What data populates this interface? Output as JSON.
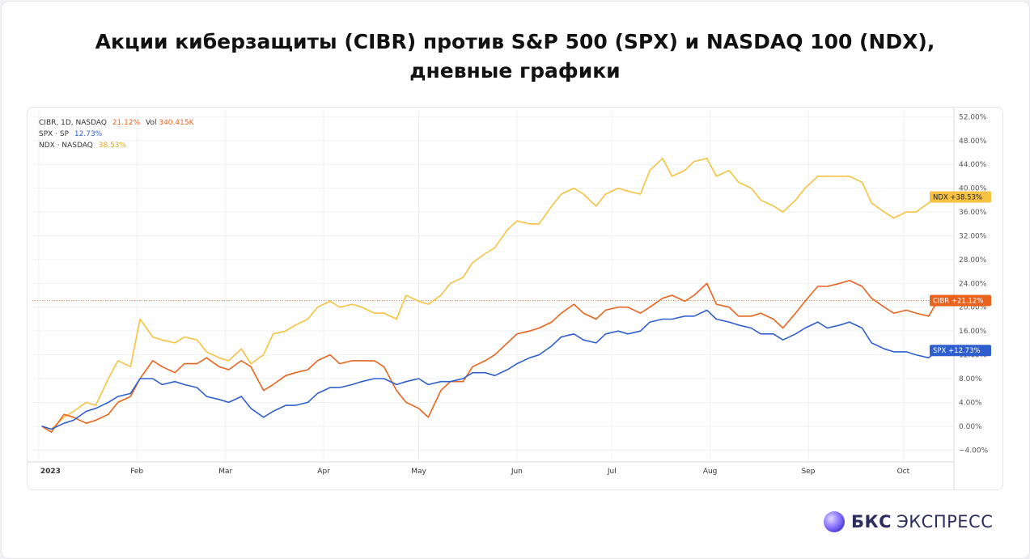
{
  "page": {
    "title_line1": "Акции киберзащиты (CIBR) против S&P 500 (SPX) и NASDAQ 100 (NDX),",
    "title_line2": "дневные графики"
  },
  "legend": {
    "cibr_label": "CIBR, 1D, NASDAQ",
    "cibr_value": "21.12%",
    "vol_label": "Vol",
    "vol_value": "340.415K",
    "spx_label": "SPX · SP",
    "spx_value": "12.73%",
    "ndx_label": "NDX · NASDAQ",
    "ndx_value": "38.53%"
  },
  "brand": {
    "name_bold": "БКС",
    "name_rest": "ЭКСПРЕСС"
  },
  "chart_data": {
    "type": "line",
    "y_unit": "%",
    "ylim": [
      -6,
      53
    ],
    "y_ticks": [
      "52.00%",
      "48.00%",
      "44.00%",
      "40.00%",
      "36.00%",
      "32.00%",
      "28.00%",
      "24.00%",
      "20.00%",
      "16.00%",
      "12.00%",
      "8.00%",
      "4.00%",
      "0.00%",
      "−4.00%"
    ],
    "y_tick_values": [
      52,
      48,
      44,
      40,
      36,
      32,
      28,
      24,
      20,
      16,
      12,
      8,
      4,
      0,
      -4
    ],
    "x_range": [
      "2022-12-30",
      "2023-10-17"
    ],
    "x_ticks": [
      {
        "label": "2023",
        "date": "2023-01-01"
      },
      {
        "label": "Feb",
        "date": "2023-02-01"
      },
      {
        "label": "Mar",
        "date": "2023-03-01"
      },
      {
        "label": "Apr",
        "date": "2023-04-01"
      },
      {
        "label": "May",
        "date": "2023-05-01"
      },
      {
        "label": "Jun",
        "date": "2023-06-01"
      },
      {
        "label": "Jul",
        "date": "2023-07-01"
      },
      {
        "label": "Aug",
        "date": "2023-08-01"
      },
      {
        "label": "Sep",
        "date": "2023-09-01"
      },
      {
        "label": "Oct",
        "date": "2023-10-01"
      }
    ],
    "grid": true,
    "legend_position": "top-left",
    "series": [
      {
        "name": "NDX",
        "color": "#f5c242",
        "last_label": "NDX  +38.53%",
        "points": [
          [
            "2023-01-02",
            0
          ],
          [
            "2023-01-05",
            -0.5
          ],
          [
            "2023-01-09",
            1.5
          ],
          [
            "2023-01-12",
            2.5
          ],
          [
            "2023-01-16",
            4
          ],
          [
            "2023-01-19",
            3.5
          ],
          [
            "2023-01-23",
            8
          ],
          [
            "2023-01-26",
            11
          ],
          [
            "2023-01-30",
            10
          ],
          [
            "2023-02-02",
            18
          ],
          [
            "2023-02-06",
            15
          ],
          [
            "2023-02-09",
            14.5
          ],
          [
            "2023-02-13",
            14
          ],
          [
            "2023-02-16",
            15
          ],
          [
            "2023-02-20",
            14.5
          ],
          [
            "2023-02-23",
            12.5
          ],
          [
            "2023-02-27",
            11.5
          ],
          [
            "2023-03-02",
            11
          ],
          [
            "2023-03-06",
            13
          ],
          [
            "2023-03-09",
            10.5
          ],
          [
            "2023-03-13",
            12
          ],
          [
            "2023-03-16",
            15.5
          ],
          [
            "2023-03-20",
            16
          ],
          [
            "2023-03-23",
            17
          ],
          [
            "2023-03-27",
            18
          ],
          [
            "2023-03-30",
            20
          ],
          [
            "2023-04-03",
            21
          ],
          [
            "2023-04-06",
            20
          ],
          [
            "2023-04-10",
            20.5
          ],
          [
            "2023-04-13",
            20
          ],
          [
            "2023-04-17",
            19
          ],
          [
            "2023-04-20",
            19
          ],
          [
            "2023-04-24",
            18
          ],
          [
            "2023-04-27",
            22
          ],
          [
            "2023-05-01",
            21
          ],
          [
            "2023-05-04",
            20.5
          ],
          [
            "2023-05-08",
            22
          ],
          [
            "2023-05-11",
            24
          ],
          [
            "2023-05-15",
            25
          ],
          [
            "2023-05-18",
            27.5
          ],
          [
            "2023-05-22",
            29
          ],
          [
            "2023-05-25",
            30
          ],
          [
            "2023-05-29",
            33
          ],
          [
            "2023-06-01",
            34.5
          ],
          [
            "2023-06-05",
            34
          ],
          [
            "2023-06-08",
            34
          ],
          [
            "2023-06-12",
            37
          ],
          [
            "2023-06-15",
            39
          ],
          [
            "2023-06-19",
            40
          ],
          [
            "2023-06-22",
            39
          ],
          [
            "2023-06-26",
            37
          ],
          [
            "2023-06-29",
            39
          ],
          [
            "2023-07-03",
            40
          ],
          [
            "2023-07-06",
            39.5
          ],
          [
            "2023-07-10",
            39
          ],
          [
            "2023-07-13",
            43
          ],
          [
            "2023-07-17",
            45
          ],
          [
            "2023-07-20",
            42
          ],
          [
            "2023-07-24",
            43
          ],
          [
            "2023-07-27",
            44.5
          ],
          [
            "2023-07-31",
            45
          ],
          [
            "2023-08-03",
            42
          ],
          [
            "2023-08-07",
            43
          ],
          [
            "2023-08-10",
            41
          ],
          [
            "2023-08-14",
            40
          ],
          [
            "2023-08-17",
            38
          ],
          [
            "2023-08-21",
            37
          ],
          [
            "2023-08-24",
            36
          ],
          [
            "2023-08-28",
            38
          ],
          [
            "2023-08-31",
            40
          ],
          [
            "2023-09-04",
            42
          ],
          [
            "2023-09-07",
            42
          ],
          [
            "2023-09-11",
            42
          ],
          [
            "2023-09-14",
            42
          ],
          [
            "2023-09-18",
            41
          ],
          [
            "2023-09-21",
            37.5
          ],
          [
            "2023-09-25",
            36
          ],
          [
            "2023-09-28",
            35
          ],
          [
            "2023-10-02",
            36
          ],
          [
            "2023-10-05",
            36
          ],
          [
            "2023-10-09",
            37.5
          ],
          [
            "2023-10-12",
            38.53
          ]
        ]
      },
      {
        "name": "CIBR",
        "color": "#e8641e",
        "last_label": "CIBR  +21.12%",
        "points": [
          [
            "2023-01-02",
            0
          ],
          [
            "2023-01-05",
            -1
          ],
          [
            "2023-01-09",
            2
          ],
          [
            "2023-01-12",
            1.5
          ],
          [
            "2023-01-16",
            0.5
          ],
          [
            "2023-01-19",
            1
          ],
          [
            "2023-01-23",
            2
          ],
          [
            "2023-01-26",
            4
          ],
          [
            "2023-01-30",
            5
          ],
          [
            "2023-02-02",
            8
          ],
          [
            "2023-02-06",
            11
          ],
          [
            "2023-02-09",
            10
          ],
          [
            "2023-02-13",
            9
          ],
          [
            "2023-02-16",
            10.5
          ],
          [
            "2023-02-20",
            10.5
          ],
          [
            "2023-02-23",
            11.5
          ],
          [
            "2023-02-27",
            10
          ],
          [
            "2023-03-02",
            9.5
          ],
          [
            "2023-03-06",
            11
          ],
          [
            "2023-03-09",
            10
          ],
          [
            "2023-03-13",
            6
          ],
          [
            "2023-03-16",
            7
          ],
          [
            "2023-03-20",
            8.5
          ],
          [
            "2023-03-23",
            9
          ],
          [
            "2023-03-27",
            9.5
          ],
          [
            "2023-03-30",
            11
          ],
          [
            "2023-04-03",
            12
          ],
          [
            "2023-04-06",
            10.5
          ],
          [
            "2023-04-10",
            11
          ],
          [
            "2023-04-13",
            11
          ],
          [
            "2023-04-17",
            11
          ],
          [
            "2023-04-20",
            10
          ],
          [
            "2023-04-24",
            6
          ],
          [
            "2023-04-27",
            4
          ],
          [
            "2023-05-01",
            3
          ],
          [
            "2023-05-04",
            1.5
          ],
          [
            "2023-05-08",
            6
          ],
          [
            "2023-05-11",
            7.5
          ],
          [
            "2023-05-15",
            7.5
          ],
          [
            "2023-05-18",
            10
          ],
          [
            "2023-05-22",
            11
          ],
          [
            "2023-05-25",
            12
          ],
          [
            "2023-05-29",
            14
          ],
          [
            "2023-06-01",
            15.5
          ],
          [
            "2023-06-05",
            16
          ],
          [
            "2023-06-08",
            16.5
          ],
          [
            "2023-06-12",
            17.5
          ],
          [
            "2023-06-15",
            19
          ],
          [
            "2023-06-19",
            20.5
          ],
          [
            "2023-06-22",
            19
          ],
          [
            "2023-06-26",
            18
          ],
          [
            "2023-06-29",
            19.5
          ],
          [
            "2023-07-03",
            20
          ],
          [
            "2023-07-06",
            20
          ],
          [
            "2023-07-10",
            19
          ],
          [
            "2023-07-13",
            20
          ],
          [
            "2023-07-17",
            21.5
          ],
          [
            "2023-07-20",
            22
          ],
          [
            "2023-07-24",
            21
          ],
          [
            "2023-07-27",
            22
          ],
          [
            "2023-07-31",
            24
          ],
          [
            "2023-08-03",
            20.5
          ],
          [
            "2023-08-07",
            20
          ],
          [
            "2023-08-10",
            18.5
          ],
          [
            "2023-08-14",
            18.5
          ],
          [
            "2023-08-17",
            19
          ],
          [
            "2023-08-21",
            18
          ],
          [
            "2023-08-24",
            16.5
          ],
          [
            "2023-08-28",
            19
          ],
          [
            "2023-08-31",
            21
          ],
          [
            "2023-09-04",
            23.5
          ],
          [
            "2023-09-07",
            23.5
          ],
          [
            "2023-09-11",
            24
          ],
          [
            "2023-09-14",
            24.5
          ],
          [
            "2023-09-18",
            23.5
          ],
          [
            "2023-09-21",
            21.5
          ],
          [
            "2023-09-25",
            20
          ],
          [
            "2023-09-28",
            19
          ],
          [
            "2023-10-02",
            19.5
          ],
          [
            "2023-10-05",
            19
          ],
          [
            "2023-10-09",
            18.5
          ],
          [
            "2023-10-12",
            21.12
          ]
        ]
      },
      {
        "name": "SPX",
        "color": "#2f5fcf",
        "last_label": "SPX  +12.73%",
        "points": [
          [
            "2023-01-02",
            0
          ],
          [
            "2023-01-05",
            -0.5
          ],
          [
            "2023-01-09",
            0.5
          ],
          [
            "2023-01-12",
            1
          ],
          [
            "2023-01-16",
            2.5
          ],
          [
            "2023-01-19",
            3
          ],
          [
            "2023-01-23",
            4
          ],
          [
            "2023-01-26",
            5
          ],
          [
            "2023-01-30",
            5.5
          ],
          [
            "2023-02-02",
            8
          ],
          [
            "2023-02-06",
            8
          ],
          [
            "2023-02-09",
            7
          ],
          [
            "2023-02-13",
            7.5
          ],
          [
            "2023-02-16",
            7
          ],
          [
            "2023-02-20",
            6.5
          ],
          [
            "2023-02-23",
            5
          ],
          [
            "2023-02-27",
            4.5
          ],
          [
            "2023-03-02",
            4
          ],
          [
            "2023-03-06",
            5
          ],
          [
            "2023-03-09",
            3
          ],
          [
            "2023-03-13",
            1.5
          ],
          [
            "2023-03-16",
            2.5
          ],
          [
            "2023-03-20",
            3.5
          ],
          [
            "2023-03-23",
            3.5
          ],
          [
            "2023-03-27",
            4
          ],
          [
            "2023-03-30",
            5.5
          ],
          [
            "2023-04-03",
            6.5
          ],
          [
            "2023-04-06",
            6.5
          ],
          [
            "2023-04-10",
            7
          ],
          [
            "2023-04-13",
            7.5
          ],
          [
            "2023-04-17",
            8
          ],
          [
            "2023-04-20",
            8
          ],
          [
            "2023-04-24",
            7
          ],
          [
            "2023-04-27",
            7.5
          ],
          [
            "2023-05-01",
            8
          ],
          [
            "2023-05-04",
            7
          ],
          [
            "2023-05-08",
            7.5
          ],
          [
            "2023-05-11",
            7.5
          ],
          [
            "2023-05-15",
            8
          ],
          [
            "2023-05-18",
            9
          ],
          [
            "2023-05-22",
            9
          ],
          [
            "2023-05-25",
            8.5
          ],
          [
            "2023-05-29",
            9.5
          ],
          [
            "2023-06-01",
            10.5
          ],
          [
            "2023-06-05",
            11.5
          ],
          [
            "2023-06-08",
            12
          ],
          [
            "2023-06-12",
            13.5
          ],
          [
            "2023-06-15",
            15
          ],
          [
            "2023-06-19",
            15.5
          ],
          [
            "2023-06-22",
            14.5
          ],
          [
            "2023-06-26",
            14
          ],
          [
            "2023-06-29",
            15.5
          ],
          [
            "2023-07-03",
            16
          ],
          [
            "2023-07-06",
            15.5
          ],
          [
            "2023-07-10",
            16
          ],
          [
            "2023-07-13",
            17.5
          ],
          [
            "2023-07-17",
            18
          ],
          [
            "2023-07-20",
            18
          ],
          [
            "2023-07-24",
            18.5
          ],
          [
            "2023-07-27",
            18.5
          ],
          [
            "2023-07-31",
            19.5
          ],
          [
            "2023-08-03",
            18
          ],
          [
            "2023-08-07",
            17.5
          ],
          [
            "2023-08-10",
            17
          ],
          [
            "2023-08-14",
            16.5
          ],
          [
            "2023-08-17",
            15.5
          ],
          [
            "2023-08-21",
            15.5
          ],
          [
            "2023-08-24",
            14.5
          ],
          [
            "2023-08-28",
            15.5
          ],
          [
            "2023-08-31",
            16.5
          ],
          [
            "2023-09-04",
            17.5
          ],
          [
            "2023-09-07",
            16.5
          ],
          [
            "2023-09-11",
            17
          ],
          [
            "2023-09-14",
            17.5
          ],
          [
            "2023-09-18",
            16.5
          ],
          [
            "2023-09-21",
            14
          ],
          [
            "2023-09-25",
            13
          ],
          [
            "2023-09-28",
            12.5
          ],
          [
            "2023-10-02",
            12.5
          ],
          [
            "2023-10-05",
            12
          ],
          [
            "2023-10-09",
            11.5
          ],
          [
            "2023-10-12",
            12.73
          ]
        ]
      }
    ],
    "current_level_line": {
      "series": "CIBR",
      "value": 21.12
    }
  }
}
